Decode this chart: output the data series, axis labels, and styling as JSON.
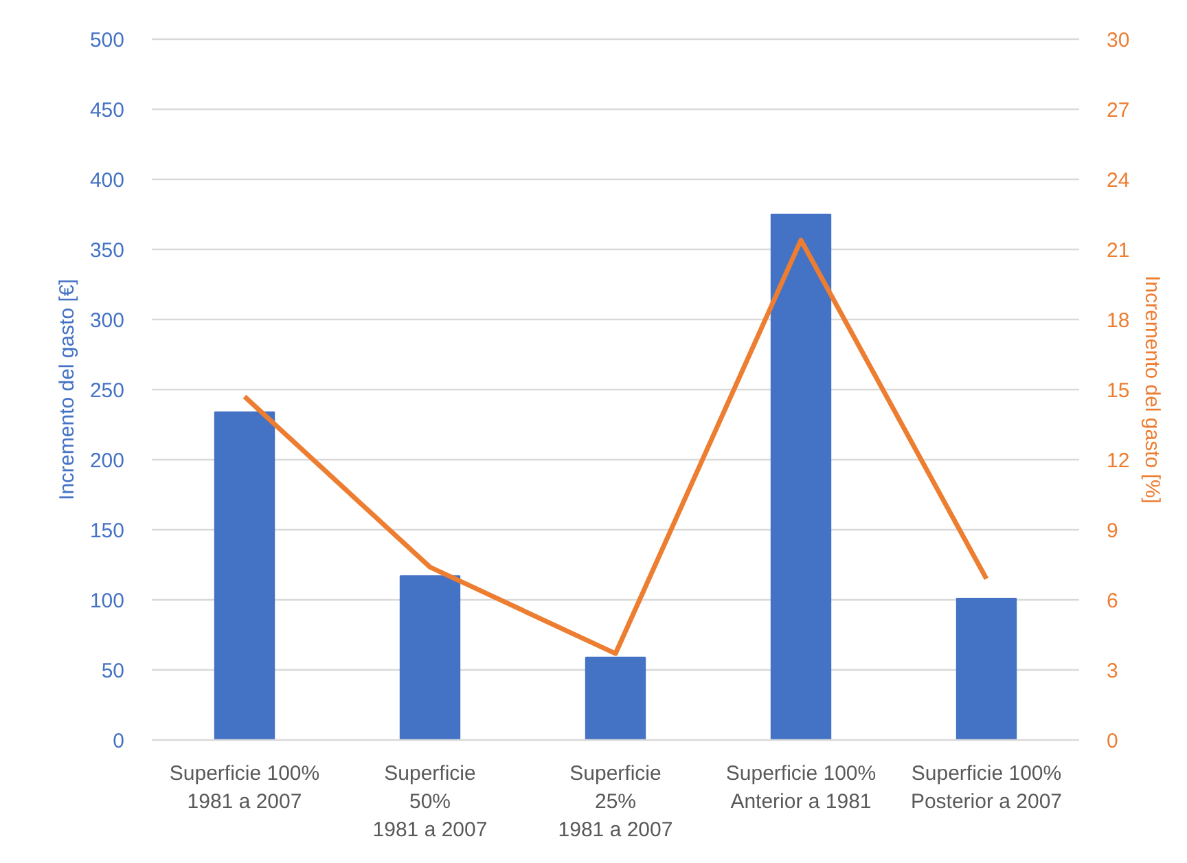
{
  "chart_data": {
    "type": "bar",
    "categories": [
      "Superficie 100%\n1981 a 2007",
      "Superficie\n50%\n1981 a 2007",
      "Superficie\n25%\n1981 a 2007",
      "Superficie 100%\nAnterior a 1981",
      "Superficie 100%\nPosterior a 2007"
    ],
    "series": [
      {
        "color": "#4472c4",
        "values": [
          234,
          117,
          59,
          375,
          101
        ]
      },
      {
        "type": "line",
        "color": "#ed7d31",
        "axis": "y2",
        "values": [
          14.7,
          7.4,
          3.7,
          21.4,
          6.9
        ]
      }
    ],
    "ylabel": "Incremento del gasto [€]",
    "y2label": "Incremento del gasto [%]",
    "ylim": [
      0,
      500
    ],
    "yticks": [
      0,
      50,
      100,
      150,
      200,
      250,
      300,
      350,
      400,
      450,
      500
    ],
    "y2lim": [
      0,
      30
    ],
    "y2ticks": [
      0,
      3,
      6,
      9,
      12,
      15,
      18,
      21,
      24,
      27,
      30
    ],
    "grid": "y"
  }
}
